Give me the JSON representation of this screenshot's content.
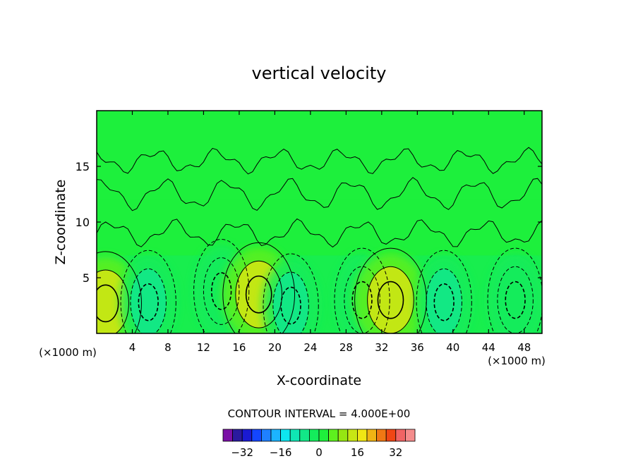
{
  "chart_data": {
    "type": "heatmap",
    "title": "vertical velocity",
    "xlabel": "X-coordinate",
    "ylabel": "Z-coordinate",
    "x_unit_label": "(×1000 m)",
    "x_unit_label_right": "(×1000 m)",
    "xlim": [
      0,
      50
    ],
    "ylim": [
      0,
      20
    ],
    "x_ticks": [
      4,
      8,
      12,
      16,
      20,
      24,
      28,
      32,
      36,
      40,
      44,
      48
    ],
    "y_ticks": [
      5,
      10,
      15
    ],
    "contour_interval_text": "CONTOUR INTERVAL = 4.000E+00",
    "colorbar": {
      "levels": [
        -40,
        -36,
        -32,
        -28,
        -24,
        -20,
        -16,
        -12,
        -8,
        -4,
        0,
        4,
        8,
        12,
        16,
        20,
        24,
        28,
        32,
        36,
        40
      ],
      "colors": [
        "#7a0fa6",
        "#2a1a9e",
        "#1a1ad2",
        "#1446ff",
        "#1f80ff",
        "#1cb4ff",
        "#0ee6f0",
        "#10e6b4",
        "#12e887",
        "#14ec5c",
        "#1ef03c",
        "#5ef01e",
        "#96e612",
        "#c8e614",
        "#f0e614",
        "#f0b414",
        "#f07814",
        "#f04614",
        "#f06464",
        "#f48c8c"
      ],
      "tick_values": [
        -32,
        -16,
        0,
        16,
        32
      ],
      "tick_labels": [
        "−32",
        "−16",
        "0",
        "16",
        "32"
      ]
    },
    "features": [
      {
        "type": "updraft_max",
        "x": 1.0,
        "z": 2.7,
        "level": 12
      },
      {
        "type": "downdraft_min",
        "x": 5.8,
        "z": 2.8,
        "level": -8
      },
      {
        "type": "downdraft_min",
        "x": 14.0,
        "z": 3.8,
        "level": -4
      },
      {
        "type": "updraft_max",
        "x": 18.2,
        "z": 3.5,
        "level": 12
      },
      {
        "type": "downdraft_min",
        "x": 21.8,
        "z": 2.5,
        "level": -8
      },
      {
        "type": "downdraft_min",
        "x": 29.8,
        "z": 3.0,
        "level": -4
      },
      {
        "type": "updraft_max",
        "x": 33.0,
        "z": 3.0,
        "level": 12
      },
      {
        "type": "downdraft_min",
        "x": 39.0,
        "z": 2.8,
        "level": -8
      },
      {
        "type": "downdraft_min",
        "x": 47.0,
        "z": 3.0,
        "level": -4
      }
    ]
  }
}
